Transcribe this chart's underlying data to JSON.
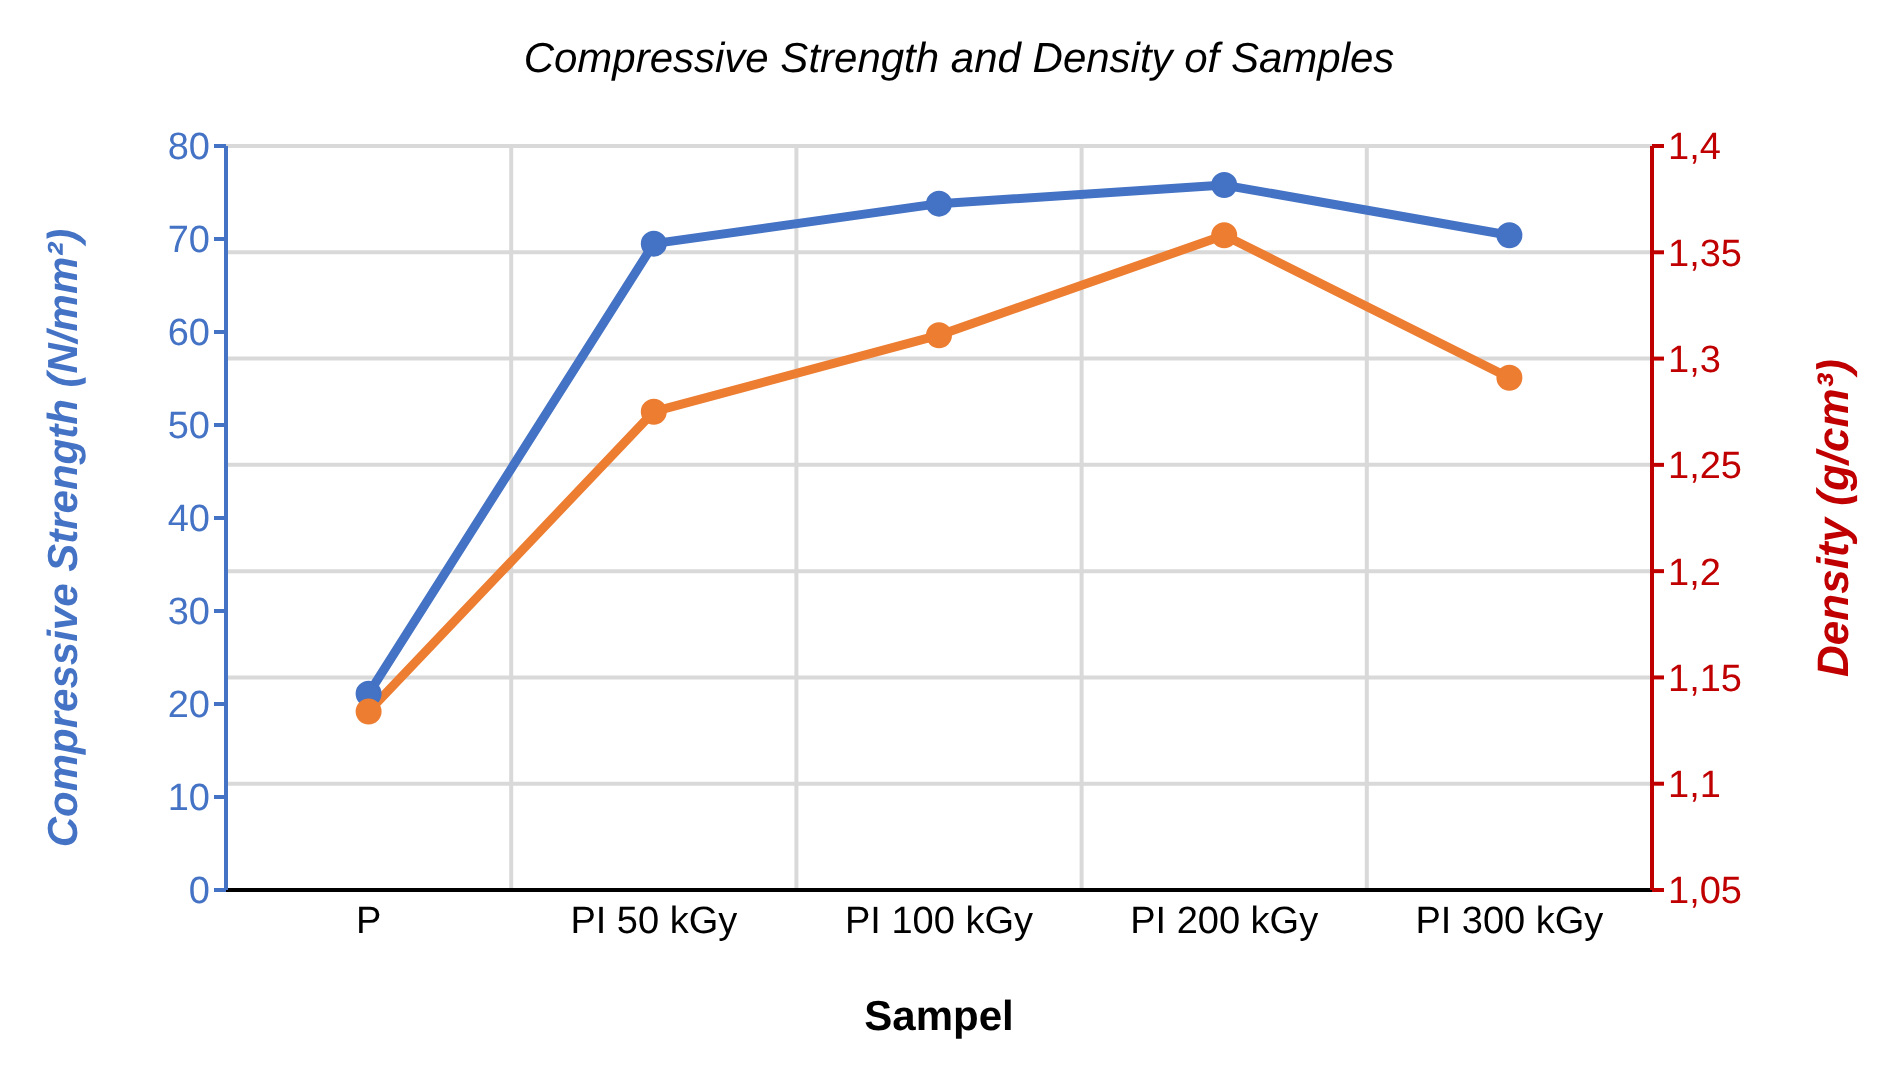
{
  "chart_data": {
    "type": "line",
    "title": "Compressive Strength and Density of Samples",
    "xlabel": "Sampel",
    "ylabel": "Compressive Strength (N/mm²)",
    "y2label": "Density (g/cm³)",
    "categories": [
      "P",
      "PI 50 kGy",
      "PI 100 kGy",
      "PI 200 kGy",
      "PI 300 kGy"
    ],
    "series": [
      {
        "color": "#4472c4",
        "values": [
          21.1,
          69.5,
          73.8,
          75.8,
          70.4
        ]
      },
      {
        "color": "#ed7d31",
        "axis": "y2",
        "values": [
          1.134,
          1.275,
          1.311,
          1.358,
          1.291
        ]
      }
    ],
    "ylim": [
      0,
      80
    ],
    "yticks": [
      0,
      10,
      20,
      30,
      40,
      50,
      60,
      70,
      80
    ],
    "y2lim": [
      1.05,
      1.4
    ],
    "y2ticks": [
      {
        "value": 1.05,
        "label": "1,05"
      },
      {
        "value": 1.1,
        "label": "1,1"
      },
      {
        "value": 1.15,
        "label": "1,15"
      },
      {
        "value": 1.2,
        "label": "1,2"
      },
      {
        "value": 1.25,
        "label": "1,25"
      },
      {
        "value": 1.3,
        "label": "1,3"
      },
      {
        "value": 1.35,
        "label": "1,35"
      },
      {
        "value": 1.4,
        "label": "1,4"
      }
    ],
    "grid": true,
    "legend": false,
    "marker": "circle",
    "line_style": "solid"
  }
}
